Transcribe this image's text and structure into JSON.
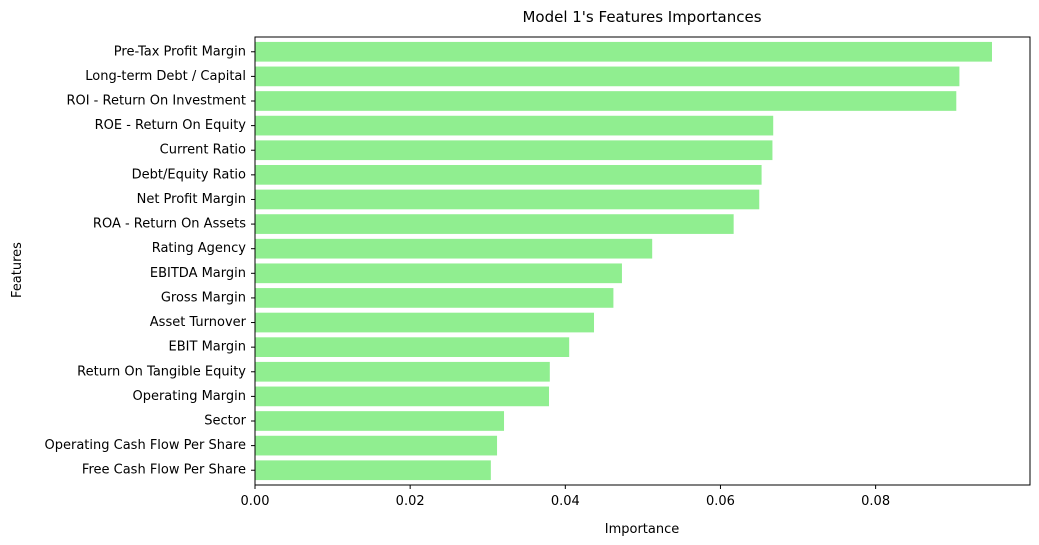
{
  "chart_data": {
    "type": "bar",
    "orientation": "horizontal",
    "title": "Model 1's Features Importances",
    "xlabel": "Importance",
    "ylabel": "Features",
    "categories": [
      "Pre-Tax Profit Margin",
      "Long-term Debt / Capital",
      "ROI - Return On Investment",
      "ROE - Return On Equity",
      "Current Ratio",
      "Debt/Equity Ratio",
      "Net Profit Margin",
      "ROA - Return On Assets",
      "Rating Agency",
      "EBITDA Margin",
      "Gross Margin",
      "Asset Turnover",
      "EBIT Margin",
      "Return On Tangible Equity",
      "Operating Margin",
      "Sector",
      "Operating Cash Flow Per Share",
      "Free Cash Flow Per Share"
    ],
    "values": [
      0.095,
      0.0908,
      0.0904,
      0.0668,
      0.0667,
      0.0653,
      0.065,
      0.0617,
      0.0512,
      0.0473,
      0.0462,
      0.0437,
      0.0405,
      0.038,
      0.0379,
      0.0321,
      0.0312,
      0.0304
    ],
    "xlim": [
      0,
      0.0999
    ],
    "xticks": [
      0.0,
      0.02,
      0.04,
      0.06,
      0.08
    ],
    "xtick_labels": [
      "0.00",
      "0.02",
      "0.04",
      "0.06",
      "0.08"
    ],
    "bar_color": "#90ee90",
    "grid": false,
    "legend": "none"
  }
}
